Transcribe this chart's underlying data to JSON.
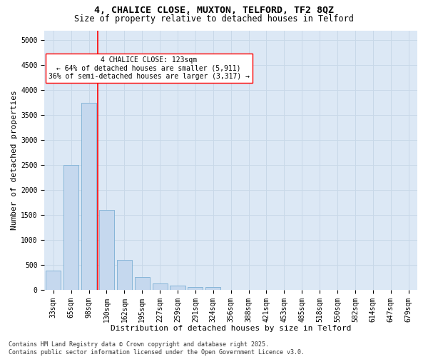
{
  "title_line1": "4, CHALICE CLOSE, MUXTON, TELFORD, TF2 8QZ",
  "title_line2": "Size of property relative to detached houses in Telford",
  "xlabel": "Distribution of detached houses by size in Telford",
  "ylabel": "Number of detached properties",
  "bar_color": "#c5d8ee",
  "bar_edge_color": "#7aafd4",
  "grid_color": "#c8d8e8",
  "background_color": "#dce8f5",
  "vline_color": "red",
  "vline_x_idx": 3,
  "annotation_text": "4 CHALICE CLOSE: 123sqm\n← 64% of detached houses are smaller (5,911)\n36% of semi-detached houses are larger (3,317) →",
  "annotation_box_color": "white",
  "annotation_box_edge": "red",
  "categories": [
    "33sqm",
    "65sqm",
    "98sqm",
    "130sqm",
    "162sqm",
    "195sqm",
    "227sqm",
    "259sqm",
    "291sqm",
    "324sqm",
    "356sqm",
    "388sqm",
    "421sqm",
    "453sqm",
    "485sqm",
    "518sqm",
    "550sqm",
    "582sqm",
    "614sqm",
    "647sqm",
    "679sqm"
  ],
  "values": [
    380,
    2500,
    3750,
    1600,
    600,
    250,
    130,
    80,
    50,
    50,
    0,
    0,
    0,
    0,
    0,
    0,
    0,
    0,
    0,
    0,
    0
  ],
  "ylim": [
    0,
    5200
  ],
  "yticks": [
    0,
    500,
    1000,
    1500,
    2000,
    2500,
    3000,
    3500,
    4000,
    4500,
    5000
  ],
  "footer_line1": "Contains HM Land Registry data © Crown copyright and database right 2025.",
  "footer_line2": "Contains public sector information licensed under the Open Government Licence v3.0.",
  "title_fontsize": 9.5,
  "subtitle_fontsize": 8.5,
  "axis_label_fontsize": 8,
  "tick_fontsize": 7,
  "annotation_fontsize": 7,
  "footer_fontsize": 6
}
